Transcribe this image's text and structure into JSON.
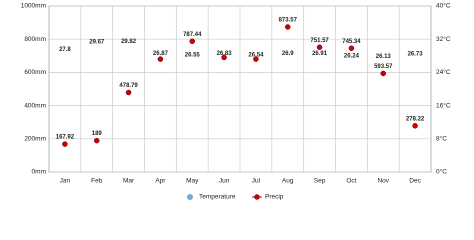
{
  "chart_data": {
    "type": "climate",
    "categories": [
      "Jan",
      "Feb",
      "Mar",
      "Apr",
      "May",
      "Jun",
      "Jul",
      "Aug",
      "Sep",
      "Oct",
      "Nov",
      "Dec"
    ],
    "series": [
      {
        "name": "Temperature",
        "color": "#6fa8dc",
        "axis": "y2",
        "values": [
          27.8,
          29.67,
          29.82,
          26.87,
          26.55,
          26.83,
          26.54,
          26.9,
          26.91,
          26.24,
          26.13,
          26.73
        ]
      },
      {
        "name": "Precip",
        "color": "#cc0000",
        "values": [
          167.92,
          189,
          478.79,
          680,
          787.44,
          690,
          680,
          873.57,
          751.57,
          745.34,
          593.57,
          278.22
        ],
        "value_labels": [
          "167.92",
          "189",
          "478.79",
          null,
          "787.44",
          null,
          null,
          "873.57",
          "751.57",
          "745.34",
          "593.57",
          "278.22"
        ]
      }
    ],
    "ylim": [
      0,
      1000
    ],
    "yticks": [
      {
        "value": 0,
        "label": "0mm"
      },
      {
        "value": 200,
        "label": "200mm"
      },
      {
        "value": 400,
        "label": "400mm"
      },
      {
        "value": 600,
        "label": "600mm"
      },
      {
        "value": 800,
        "label": "800mm"
      },
      {
        "value": 1000,
        "label": "1000mm"
      }
    ],
    "y2lim": [
      0,
      40
    ],
    "y2ticks": [
      {
        "value": 0,
        "label": "0°C"
      },
      {
        "value": 8,
        "label": "8°C"
      },
      {
        "value": 16,
        "label": "16°C"
      },
      {
        "value": 24,
        "label": "24°C"
      },
      {
        "value": 32,
        "label": "32°C"
      },
      {
        "value": 40,
        "label": "40°C"
      }
    ],
    "grid": true
  }
}
